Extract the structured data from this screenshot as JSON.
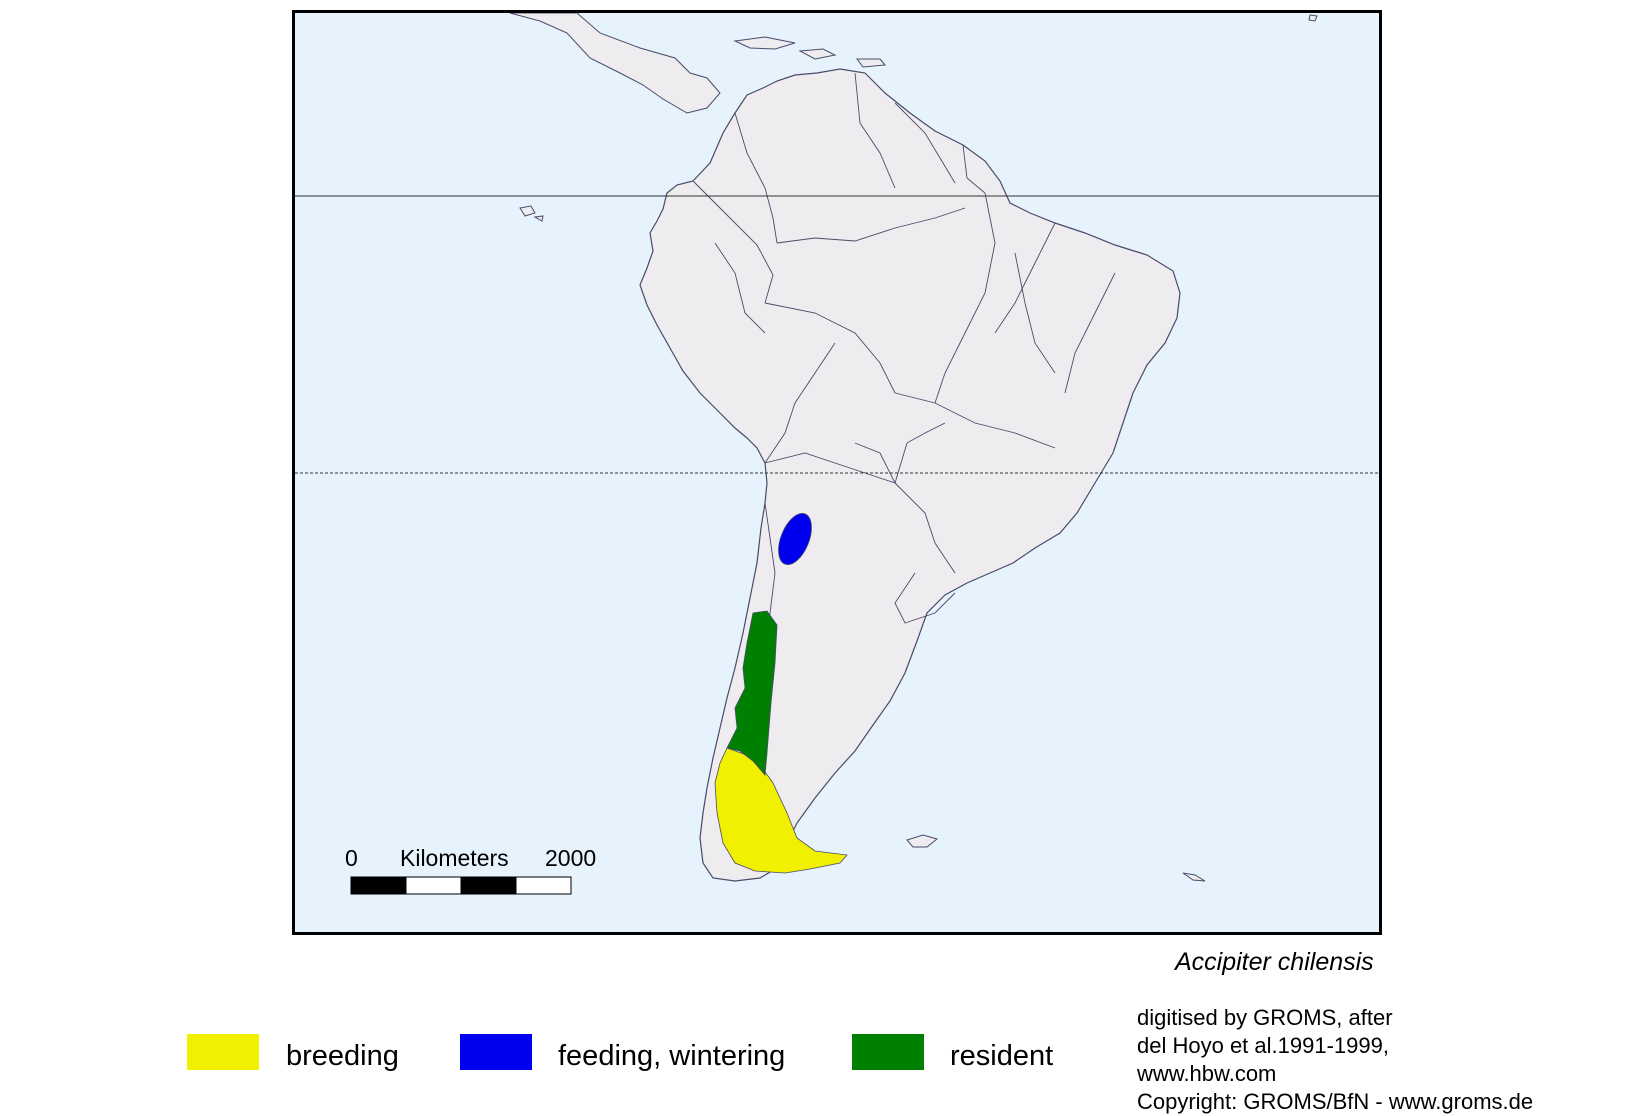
{
  "map": {
    "colors": {
      "ocean": "#e6f2fc",
      "land": "#efecef",
      "border": "#4a4a6a",
      "breeding": "#f0f000",
      "feeding_wintering": "#0000ee",
      "resident": "#008000"
    }
  },
  "scale_bar": {
    "start": "0",
    "unit": "Kilometers",
    "end": "2000"
  },
  "species": "Accipiter chilensis",
  "legend": [
    {
      "label": "breeding",
      "color": "#f0f000"
    },
    {
      "label": "feeding, wintering",
      "color": "#0000ee"
    },
    {
      "label": "resident",
      "color": "#008000"
    }
  ],
  "credits": [
    "digitised by GROMS, after",
    "del Hoyo et al.1991-1999,",
    "www.hbw.com",
    "Copyright: GROMS/BfN - www.groms.de"
  ]
}
